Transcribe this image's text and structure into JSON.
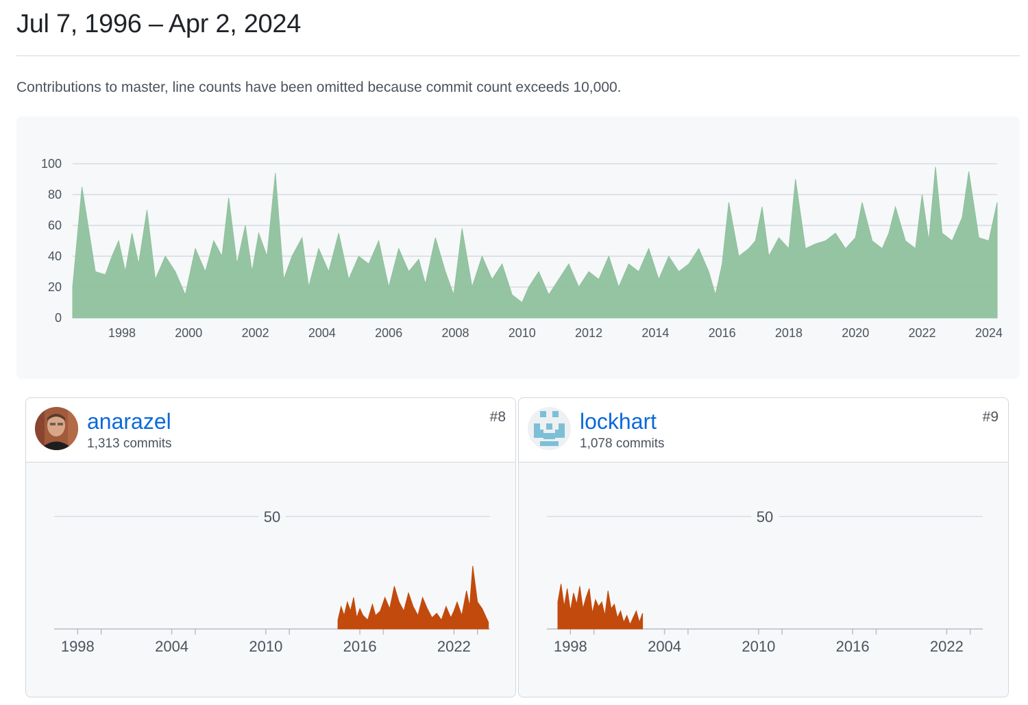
{
  "page": {
    "title": "Jul 7, 1996 – Apr 2, 2024",
    "subtitle": "Contributions to master, line counts have been omitted because commit count exceeds 10,000."
  },
  "colors": {
    "main_area": "#8fc19d",
    "contributor_area": "#c24a0d",
    "grid": "#cfd5dc"
  },
  "chart_data": [
    {
      "type": "area",
      "x_range": [
        1996.52,
        2024.25
      ],
      "ylim": [
        0,
        100
      ],
      "y_ticks": [
        0,
        20,
        40,
        60,
        80,
        100
      ],
      "x_ticks": [
        "1998",
        "2000",
        "2002",
        "2004",
        "2006",
        "2008",
        "2010",
        "2012",
        "2014",
        "2016",
        "2018",
        "2020",
        "2022",
        "2024"
      ],
      "x_tick_values": [
        1998,
        2000,
        2002,
        2004,
        2006,
        2008,
        2010,
        2012,
        2014,
        2016,
        2018,
        2020,
        2022,
        2024
      ],
      "series": [
        {
          "x": [
            1996.52,
            1996.8,
            1997.2,
            1997.5,
            1997.7,
            1997.9,
            1998.1,
            1998.3,
            1998.5,
            1998.75,
            1999.0,
            1999.3,
            1999.6,
            1999.9,
            2000.2,
            2000.5,
            2000.75,
            2001.0,
            2001.2,
            2001.45,
            2001.7,
            2001.9,
            2002.1,
            2002.35,
            2002.6,
            2002.85,
            2003.1,
            2003.4,
            2003.6,
            2003.9,
            2004.2,
            2004.5,
            2004.8,
            2005.1,
            2005.4,
            2005.7,
            2006.0,
            2006.3,
            2006.6,
            2006.9,
            2007.1,
            2007.4,
            2007.7,
            2007.95,
            2008.2,
            2008.5,
            2008.8,
            2009.1,
            2009.4,
            2009.7,
            2010.0,
            2010.2,
            2010.5,
            2010.8,
            2011.1,
            2011.4,
            2011.7,
            2012.0,
            2012.3,
            2012.6,
            2012.9,
            2013.2,
            2013.5,
            2013.8,
            2014.1,
            2014.4,
            2014.7,
            2015.0,
            2015.3,
            2015.6,
            2015.8,
            2016.0,
            2016.2,
            2016.5,
            2016.8,
            2017.0,
            2017.2,
            2017.4,
            2017.7,
            2018.0,
            2018.2,
            2018.5,
            2018.8,
            2019.1,
            2019.4,
            2019.7,
            2020.0,
            2020.2,
            2020.5,
            2020.8,
            2021.0,
            2021.2,
            2021.5,
            2021.8,
            2022.0,
            2022.2,
            2022.4,
            2022.6,
            2022.9,
            2023.2,
            2023.4,
            2023.7,
            2024.0,
            2024.25
          ],
          "y": [
            20,
            85,
            30,
            28,
            40,
            50,
            30,
            55,
            35,
            70,
            25,
            40,
            30,
            15,
            45,
            30,
            50,
            40,
            78,
            35,
            60,
            30,
            55,
            40,
            94,
            25,
            40,
            52,
            20,
            45,
            30,
            55,
            25,
            40,
            35,
            50,
            20,
            45,
            30,
            38,
            22,
            52,
            30,
            15,
            58,
            20,
            40,
            25,
            35,
            15,
            10,
            20,
            30,
            15,
            25,
            35,
            20,
            30,
            25,
            40,
            20,
            35,
            30,
            45,
            25,
            40,
            30,
            35,
            45,
            30,
            15,
            35,
            75,
            40,
            45,
            50,
            72,
            40,
            52,
            45,
            90,
            45,
            48,
            50,
            55,
            45,
            52,
            75,
            50,
            45,
            55,
            72,
            50,
            45,
            80,
            50,
            98,
            55,
            50,
            65,
            95,
            52,
            50,
            75
          ]
        }
      ]
    },
    {
      "type": "area",
      "name": "anarazel",
      "x_range": [
        1996.5,
        2024.3
      ],
      "ylim": [
        0,
        60
      ],
      "y_ticks": [
        50
      ],
      "x_ticks": [
        "1998",
        "2004",
        "2010",
        "2016",
        "2022"
      ],
      "x_tick_values": [
        1998,
        2004,
        2010,
        2016,
        2022
      ],
      "series": [
        {
          "x": [
            2014.6,
            2014.8,
            2015.0,
            2015.2,
            2015.4,
            2015.6,
            2015.8,
            2016.0,
            2016.2,
            2016.5,
            2016.8,
            2017.0,
            2017.3,
            2017.6,
            2017.9,
            2018.2,
            2018.5,
            2018.8,
            2019.1,
            2019.4,
            2019.7,
            2020.0,
            2020.3,
            2020.6,
            2020.9,
            2021.2,
            2021.5,
            2021.8,
            2022.0,
            2022.2,
            2022.5,
            2022.8,
            2023.0,
            2023.2,
            2023.5,
            2023.8,
            2024.0,
            2024.2
          ],
          "y": [
            4,
            10,
            6,
            12,
            8,
            14,
            5,
            9,
            6,
            4,
            11,
            6,
            8,
            14,
            9,
            19,
            12,
            8,
            16,
            10,
            6,
            14,
            9,
            5,
            7,
            4,
            10,
            5,
            8,
            12,
            6,
            17,
            10,
            28,
            12,
            9,
            6,
            3
          ]
        }
      ]
    },
    {
      "type": "area",
      "name": "lockhart",
      "x_range": [
        1996.5,
        2024.3
      ],
      "ylim": [
        0,
        60
      ],
      "y_ticks": [
        50
      ],
      "x_ticks": [
        "1998",
        "2004",
        "2010",
        "2016",
        "2022"
      ],
      "x_tick_values": [
        1998,
        2004,
        2010,
        2016,
        2022
      ],
      "series": [
        {
          "x": [
            1997.2,
            1997.4,
            1997.6,
            1997.8,
            1998.0,
            1998.2,
            1998.4,
            1998.6,
            1998.8,
            1999.0,
            1999.2,
            1999.4,
            1999.6,
            1999.8,
            2000.0,
            2000.2,
            2000.4,
            2000.6,
            2000.8,
            2001.0,
            2001.2,
            2001.4,
            2001.6,
            2001.8,
            2002.0,
            2002.2,
            2002.4,
            2002.6
          ],
          "y": [
            12,
            20,
            10,
            18,
            8,
            16,
            11,
            19,
            9,
            14,
            18,
            7,
            13,
            10,
            12,
            6,
            17,
            9,
            11,
            5,
            8,
            3,
            6,
            2,
            5,
            8,
            3,
            7
          ]
        }
      ]
    }
  ],
  "contributors": [
    {
      "username": "anarazel",
      "commits": "1,313 commits",
      "rank": "#8"
    },
    {
      "username": "lockhart",
      "commits": "1,078 commits",
      "rank": "#9"
    }
  ]
}
